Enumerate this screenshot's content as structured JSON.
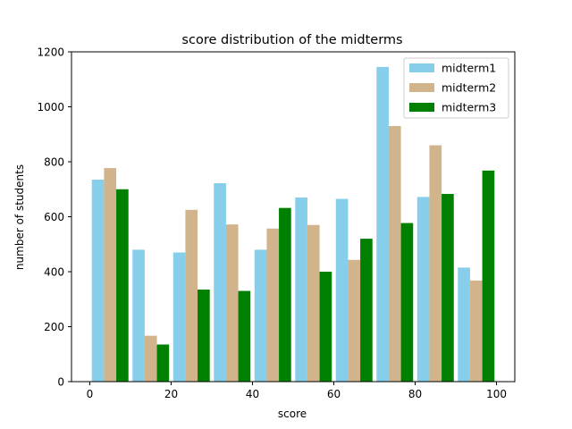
{
  "chart_data": {
    "type": "bar",
    "title": "score distribution of the midterms",
    "xlabel": "score",
    "ylabel": "number of students",
    "xlim": [
      -4.5,
      104.5
    ],
    "ylim": [
      0,
      1200
    ],
    "xticks": [
      0,
      20,
      40,
      60,
      80,
      100
    ],
    "yticks": [
      0,
      200,
      400,
      600,
      800,
      1000,
      1200
    ],
    "bin_edges": [
      0,
      10,
      20,
      30,
      40,
      50,
      60,
      70,
      80,
      90,
      100
    ],
    "grid": false,
    "legend_position": "upper right",
    "series": [
      {
        "name": "midterm1",
        "color": "#87ceeb",
        "values": [
          735,
          480,
          470,
          722,
          480,
          670,
          665,
          1145,
          672,
          415
        ]
      },
      {
        "name": "midterm2",
        "color": "#d2b48c",
        "values": [
          777,
          167,
          625,
          572,
          557,
          570,
          443,
          930,
          860,
          368
        ]
      },
      {
        "name": "midterm3",
        "color": "#008000",
        "values": [
          700,
          135,
          335,
          330,
          632,
          400,
          520,
          577,
          683,
          768
        ]
      }
    ]
  }
}
